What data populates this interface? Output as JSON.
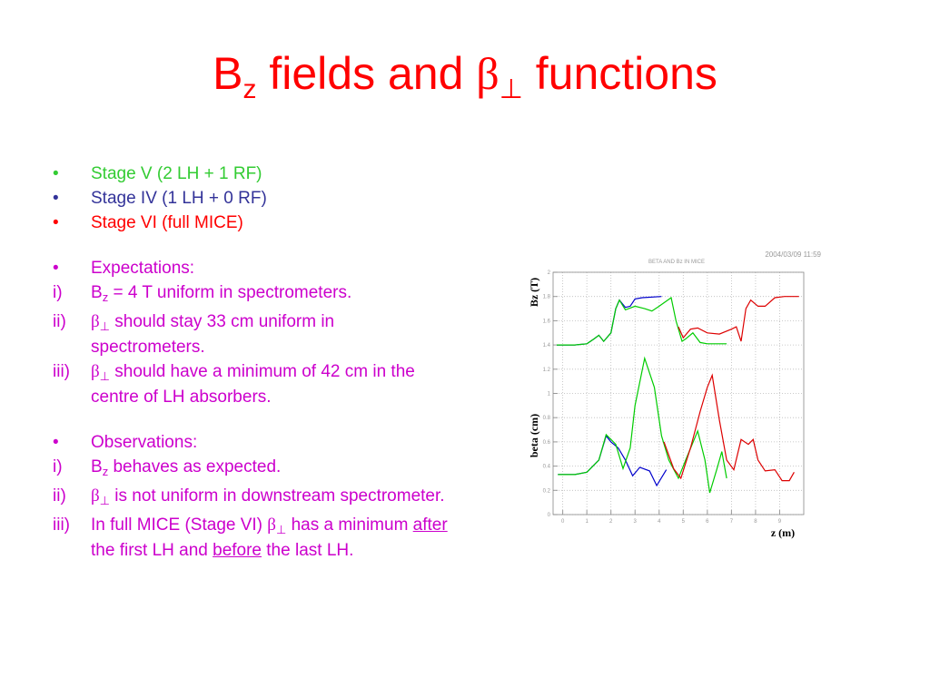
{
  "slide": {
    "title": [
      {
        "text": "B"
      },
      {
        "text": "z",
        "style": "sub"
      },
      {
        "text": " fields and "
      },
      {
        "text": "β",
        "style": "sym"
      },
      {
        "text": "⊥",
        "style": "sub sym"
      },
      {
        "text": " functions"
      }
    ],
    "bullets": [
      {
        "items": [
          {
            "marker": "•",
            "color": "#33cc33",
            "segments": [
              {
                "text": "Stage V (2 LH + 1 RF)"
              }
            ]
          },
          {
            "marker": "•",
            "color": "#333399",
            "segments": [
              {
                "text": "Stage IV (1 LH + 0 RF)"
              }
            ]
          },
          {
            "marker": "•",
            "color": "#ff0000",
            "segments": [
              {
                "text": "Stage VI (full MICE)"
              }
            ]
          }
        ]
      },
      {
        "items": [
          {
            "marker": "•",
            "color": "#cc00cc",
            "segments": [
              {
                "text": "Expectations:"
              }
            ]
          },
          {
            "marker": "i)",
            "color": "#cc00cc",
            "segments": [
              {
                "text": "B"
              },
              {
                "text": "z",
                "style": "sub"
              },
              {
                "text": " = 4 T uniform in spectrometers."
              }
            ]
          },
          {
            "marker": "ii)",
            "color": "#cc00cc",
            "segments": [
              {
                "text": "β",
                "style": "sym"
              },
              {
                "text": "⊥",
                "style": "sub sym"
              },
              {
                "text": " should stay 33 cm uniform in spectrometers."
              }
            ]
          },
          {
            "marker": "iii)",
            "color": "#cc00cc",
            "segments": [
              {
                "text": "β",
                "style": "sym"
              },
              {
                "text": "⊥",
                "style": "sub sym"
              },
              {
                "text": " should have a minimum of 42 cm in the centre of LH absorbers."
              }
            ]
          }
        ]
      },
      {
        "items": [
          {
            "marker": "•",
            "color": "#cc00cc",
            "segments": [
              {
                "text": "Observations:"
              }
            ]
          },
          {
            "marker": "i)",
            "color": "#cc00cc",
            "segments": [
              {
                "text": "B"
              },
              {
                "text": "z",
                "style": "sub"
              },
              {
                "text": " behaves as expected."
              }
            ]
          },
          {
            "marker": "ii)",
            "color": "#cc00cc",
            "segments": [
              {
                "text": "β",
                "style": "sym"
              },
              {
                "text": "⊥",
                "style": "sub sym"
              },
              {
                "text": " is not uniform in downstream spectrometer."
              }
            ]
          },
          {
            "marker": "iii)",
            "color": "#cc00cc",
            "segments": [
              {
                "text": "In full MICE (Stage VI) "
              },
              {
                "text": "β",
                "style": "sym"
              },
              {
                "text": "⊥",
                "style": "sub sym"
              },
              {
                "text": " has a minimum "
              },
              {
                "text": "after",
                "style": "underline"
              },
              {
                "text": " the first LH and "
              },
              {
                "text": "before",
                "style": "underline"
              },
              {
                "text": " the last LH."
              }
            ]
          }
        ]
      }
    ]
  },
  "chart_data": {
    "type": "line",
    "title": "BETA AND Bz IN MICE",
    "timestamp": "2004/03/09  11:59",
    "y_label_top": "Bz (T)",
    "y_label_bottom": "beta (cm)",
    "x_label": "z (m)",
    "xlim": [
      -0.4,
      10
    ],
    "ylim": [
      0,
      2
    ],
    "xticks": [
      0,
      1,
      2,
      3,
      4,
      5,
      6,
      7,
      8,
      9
    ],
    "yticks": [
      0,
      0.2,
      0.4,
      0.6,
      0.8,
      1,
      1.2,
      1.4,
      1.6,
      1.8,
      2
    ],
    "grid": true,
    "series": [
      {
        "color": "#0000cc",
        "x": [
          -0.25,
          0.5,
          1.0,
          1.3,
          1.5,
          1.7,
          2.0,
          2.2,
          2.35,
          2.6,
          2.8,
          3.0,
          3.3,
          4.1
        ],
        "values": [
          1.4,
          1.4,
          1.41,
          1.45,
          1.48,
          1.43,
          1.5,
          1.7,
          1.77,
          1.71,
          1.72,
          1.78,
          1.79,
          1.8
        ]
      },
      {
        "color": "#00cc00",
        "x": [
          -0.25,
          0.5,
          1.0,
          1.3,
          1.5,
          1.7,
          2.0,
          2.2,
          2.35,
          2.6,
          3.0,
          3.4,
          3.7,
          4.0,
          4.5,
          4.7,
          4.95,
          5.1,
          5.4,
          5.7,
          6.0,
          6.8
        ],
        "values": [
          1.4,
          1.4,
          1.41,
          1.45,
          1.48,
          1.43,
          1.5,
          1.7,
          1.77,
          1.69,
          1.72,
          1.7,
          1.68,
          1.72,
          1.79,
          1.6,
          1.43,
          1.45,
          1.5,
          1.42,
          1.41,
          1.41
        ]
      },
      {
        "color": "#dd0000",
        "x": [
          4.8,
          5.0,
          5.3,
          5.6,
          6.0,
          6.5,
          7.0,
          7.2,
          7.4,
          7.6,
          7.8,
          8.1,
          8.4,
          8.8,
          9.2,
          9.8
        ],
        "values": [
          1.55,
          1.46,
          1.53,
          1.54,
          1.5,
          1.49,
          1.53,
          1.55,
          1.43,
          1.7,
          1.77,
          1.72,
          1.72,
          1.79,
          1.8,
          1.8
        ]
      },
      {
        "color": "#0000cc",
        "x": [
          -0.2,
          0.5,
          1.0,
          1.5,
          1.8,
          2.0,
          2.3,
          2.6,
          2.9,
          3.2,
          3.6,
          3.9,
          4.3
        ],
        "values": [
          0.33,
          0.33,
          0.35,
          0.45,
          0.65,
          0.6,
          0.55,
          0.45,
          0.32,
          0.39,
          0.36,
          0.24,
          0.37
        ]
      },
      {
        "color": "#00cc00",
        "x": [
          -0.2,
          0.5,
          1.0,
          1.5,
          1.8,
          2.0,
          2.2,
          2.5,
          2.8,
          3.0,
          3.4,
          3.8,
          4.1,
          4.4,
          4.8,
          5.1,
          5.6,
          5.9,
          6.1,
          6.4,
          6.6,
          6.8
        ],
        "values": [
          0.33,
          0.33,
          0.35,
          0.45,
          0.66,
          0.62,
          0.58,
          0.38,
          0.55,
          0.9,
          1.29,
          1.05,
          0.65,
          0.45,
          0.3,
          0.45,
          0.69,
          0.45,
          0.18,
          0.38,
          0.52,
          0.3
        ]
      },
      {
        "color": "#dd0000",
        "x": [
          4.2,
          4.6,
          4.9,
          5.3,
          5.7,
          6.0,
          6.2,
          6.5,
          6.8,
          7.1,
          7.4,
          7.7,
          7.9,
          8.1,
          8.4,
          8.8,
          9.1,
          9.4,
          9.6
        ],
        "values": [
          0.6,
          0.38,
          0.3,
          0.55,
          0.85,
          1.05,
          1.15,
          0.78,
          0.45,
          0.37,
          0.62,
          0.58,
          0.62,
          0.45,
          0.36,
          0.37,
          0.28,
          0.28,
          0.35
        ]
      }
    ]
  }
}
